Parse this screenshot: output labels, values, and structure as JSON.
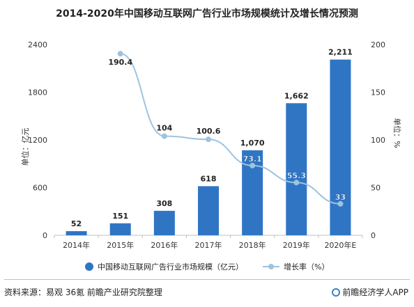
{
  "chart_data": {
    "type": "bar+line",
    "title": "2014-2020年中国移动互联网广告行业市场规模统计及增长情况预测",
    "categories": [
      "2014年",
      "2015年",
      "2016年",
      "2017年",
      "2018年",
      "2019年",
      "2020年E"
    ],
    "series": [
      {
        "name": "中国移动互联网广告行业市场规模（亿元）",
        "type": "bar",
        "axis": "left",
        "color": "#2f75c4",
        "values": [
          52,
          151,
          308,
          618,
          1070,
          1662,
          2211
        ],
        "labels": [
          "52",
          "151",
          "308",
          "618",
          "1,070",
          "1,662",
          "2,211"
        ]
      },
      {
        "name": "增长率（%）",
        "type": "line",
        "axis": "right",
        "color": "#9dc3df",
        "values": [
          null,
          190.4,
          104,
          100.6,
          73.1,
          55.3,
          33
        ],
        "labels": [
          "",
          "190.4",
          "104",
          "100.6",
          "73.1",
          "55.3",
          "33"
        ]
      }
    ],
    "ylabel_left": "单位：亿元",
    "ylabel_right": "单位：%",
    "ylim_left": [
      0,
      2400
    ],
    "yticks_left": [
      "0",
      "600",
      "1200",
      "1800",
      "2400"
    ],
    "ylim_right": [
      0,
      200
    ],
    "yticks_right": [
      "0",
      "50",
      "100",
      "150",
      "200"
    ],
    "grid": false,
    "legend": "bottom"
  },
  "footer": {
    "source": "资料来源：易观 36氪 前瞻产业研究院整理",
    "brand": "前瞻经济学人APP"
  }
}
